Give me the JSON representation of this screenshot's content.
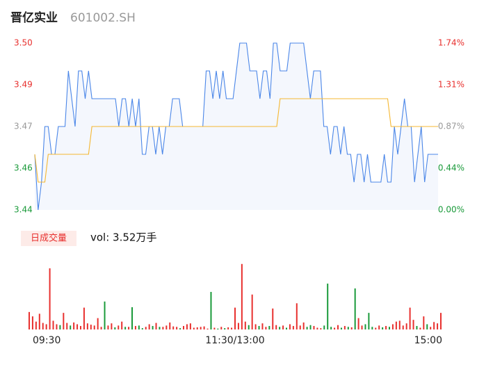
{
  "chart_data": {
    "type": "intraday",
    "title": "晋亿实业",
    "subtitle": "601002.SH",
    "xlim": [
      0,
      120
    ],
    "xticks": [
      {
        "value": 0,
        "label": "09:30"
      },
      {
        "value": 60,
        "label": "11:30/13:00"
      },
      {
        "value": 120,
        "label": "15:00"
      }
    ],
    "ylim": [
      3.44,
      3.5
    ],
    "yticks": [
      3.44,
      {
        "value": 3.455,
        "label": "3.46"
      },
      3.47,
      {
        "value": 3.485,
        "label": "3.49"
      },
      {
        "value": 3.5,
        "label": "3.50"
      }
    ],
    "y2lim": [
      0,
      1.744
    ],
    "y2ticks": [
      {
        "value": 0,
        "label": "0.00%"
      },
      {
        "value": 0.436,
        "label": "0.44%"
      },
      {
        "value": 0.872,
        "label": "0.87%"
      },
      {
        "value": 1.308,
        "label": "1.31%"
      },
      {
        "value": 1.744,
        "label": "1.74%"
      }
    ],
    "tick_colors": [
      "#1a9a3a",
      "#1a9a3a",
      "#999999",
      "#e8302e",
      "#e8302e"
    ],
    "series": [
      {
        "color": "#4a86e8",
        "values": [
          3.46,
          3.44,
          3.45,
          3.47,
          3.47,
          3.46,
          3.46,
          3.47,
          3.47,
          3.47,
          3.49,
          3.48,
          3.47,
          3.49,
          3.49,
          3.48,
          3.49,
          3.48,
          3.48,
          3.48,
          3.48,
          3.48,
          3.48,
          3.48,
          3.48,
          3.47,
          3.48,
          3.48,
          3.47,
          3.48,
          3.47,
          3.48,
          3.46,
          3.46,
          3.47,
          3.47,
          3.46,
          3.47,
          3.46,
          3.47,
          3.47,
          3.48,
          3.48,
          3.48,
          3.47,
          3.47,
          3.47,
          3.47,
          3.47,
          3.47,
          3.47,
          3.49,
          3.49,
          3.48,
          3.49,
          3.48,
          3.49,
          3.48,
          3.48,
          3.48,
          3.49,
          3.5,
          3.5,
          3.5,
          3.49,
          3.49,
          3.49,
          3.48,
          3.49,
          3.49,
          3.48,
          3.5,
          3.5,
          3.49,
          3.49,
          3.49,
          3.5,
          3.5,
          3.5,
          3.5,
          3.5,
          3.49,
          3.48,
          3.49,
          3.49,
          3.49,
          3.47,
          3.47,
          3.46,
          3.47,
          3.47,
          3.46,
          3.47,
          3.46,
          3.46,
          3.45,
          3.46,
          3.46,
          3.45,
          3.46,
          3.45,
          3.45,
          3.45,
          3.45,
          3.46,
          3.45,
          3.45,
          3.47,
          3.46,
          3.47,
          3.48,
          3.47,
          3.47,
          3.45,
          3.46,
          3.47,
          3.45,
          3.46,
          3.46,
          3.46,
          3.46
        ]
      },
      {
        "color": "#f5b731",
        "values": [
          3.46,
          3.45,
          3.45,
          3.45,
          3.46,
          3.46,
          3.46,
          3.46,
          3.46,
          3.46,
          3.46,
          3.46,
          3.46,
          3.46,
          3.46,
          3.46,
          3.46,
          3.47,
          3.47,
          3.47,
          3.47,
          3.47,
          3.47,
          3.47,
          3.47,
          3.47,
          3.47,
          3.47,
          3.47,
          3.47,
          3.47,
          3.47,
          3.47,
          3.47,
          3.47,
          3.47,
          3.47,
          3.47,
          3.47,
          3.47,
          3.47,
          3.47,
          3.47,
          3.47,
          3.47,
          3.47,
          3.47,
          3.47,
          3.47,
          3.47,
          3.47,
          3.47,
          3.47,
          3.47,
          3.47,
          3.47,
          3.47,
          3.47,
          3.47,
          3.47,
          3.47,
          3.47,
          3.47,
          3.47,
          3.47,
          3.47,
          3.47,
          3.47,
          3.47,
          3.47,
          3.47,
          3.47,
          3.47,
          3.48,
          3.48,
          3.48,
          3.48,
          3.48,
          3.48,
          3.48,
          3.48,
          3.48,
          3.48,
          3.48,
          3.48,
          3.48,
          3.48,
          3.48,
          3.48,
          3.48,
          3.48,
          3.48,
          3.48,
          3.48,
          3.48,
          3.48,
          3.48,
          3.48,
          3.48,
          3.48,
          3.48,
          3.48,
          3.48,
          3.48,
          3.48,
          3.48,
          3.47,
          3.47,
          3.47,
          3.47,
          3.47,
          3.47,
          3.47,
          3.47,
          3.47,
          3.47,
          3.47,
          3.47,
          3.47,
          3.47,
          3.47
        ]
      }
    ],
    "volume_label": "日成交量",
    "volume_text": "vol: 3.52万手",
    "volume_lim": [
      0,
      1560
    ],
    "volumes": [
      400,
      300,
      180,
      360,
      150,
      120,
      1400,
      200,
      120,
      100,
      380,
      150,
      90,
      160,
      120,
      80,
      500,
      140,
      110,
      90,
      260,
      60,
      640,
      90,
      140,
      50,
      90,
      180,
      60,
      60,
      510,
      80,
      90,
      30,
      60,
      120,
      80,
      150,
      60,
      60,
      90,
      160,
      70,
      60,
      30,
      80,
      120,
      140,
      40,
      50,
      60,
      70,
      20,
      860,
      40,
      20,
      60,
      30,
      50,
      40,
      500,
      150,
      1500,
      180,
      100,
      800,
      120,
      80,
      140,
      60,
      80,
      480,
      100,
      60,
      90,
      40,
      120,
      80,
      600,
      90,
      160,
      60,
      100,
      80,
      40,
      30,
      90,
      1050,
      60,
      40,
      100,
      40,
      80,
      60,
      50,
      940,
      260,
      90,
      120,
      380,
      60,
      40,
      90,
      50,
      80,
      60,
      120,
      180,
      200,
      90,
      140,
      500,
      220,
      80,
      40,
      300,
      120,
      60,
      170,
      140,
      380
    ],
    "volume_colors": [
      "#e8302e",
      "#e8302e",
      "#e8302e",
      "#e8302e",
      "#e8302e",
      "#e8302e",
      "#e8302e",
      "#e8302e",
      "#e8302e",
      "#1a9a3a",
      "#e8302e",
      "#e8302e",
      "#1a9a3a",
      "#e8302e",
      "#e8302e",
      "#e8302e",
      "#e8302e",
      "#e8302e",
      "#e8302e",
      "#e8302e",
      "#e8302e",
      "#e8302e",
      "#1a9a3a",
      "#e8302e",
      "#e8302e",
      "#1a9a3a",
      "#e8302e",
      "#e8302e",
      "#1a9a3a",
      "#e8302e",
      "#1a9a3a",
      "#e8302e",
      "#1a9a3a",
      "#1a9a3a",
      "#e8302e",
      "#e8302e",
      "#1a9a3a",
      "#e8302e",
      "#1a9a3a",
      "#e8302e",
      "#e8302e",
      "#e8302e",
      "#e8302e",
      "#e8302e",
      "#1a9a3a",
      "#e8302e",
      "#e8302e",
      "#e8302e",
      "#e8302e",
      "#e8302e",
      "#e8302e",
      "#e8302e",
      "#e8302e",
      "#1a9a3a",
      "#e8302e",
      "#1a9a3a",
      "#e8302e",
      "#1a9a3a",
      "#e8302e",
      "#e8302e",
      "#e8302e",
      "#e8302e",
      "#e8302e",
      "#e8302e",
      "#1a9a3a",
      "#e8302e",
      "#e8302e",
      "#1a9a3a",
      "#e8302e",
      "#e8302e",
      "#1a9a3a",
      "#e8302e",
      "#e8302e",
      "#1a9a3a",
      "#e8302e",
      "#1a9a3a",
      "#e8302e",
      "#e8302e",
      "#e8302e",
      "#e8302e",
      "#e8302e",
      "#1a9a3a",
      "#1a9a3a",
      "#e8302e",
      "#e8302e",
      "#e8302e",
      "#1a9a3a",
      "#1a9a3a",
      "#1a9a3a",
      "#e8302e",
      "#e8302e",
      "#1a9a3a",
      "#e8302e",
      "#1a9a3a",
      "#e8302e",
      "#1a9a3a",
      "#e8302e",
      "#e8302e",
      "#1a9a3a",
      "#1a9a3a",
      "#1a9a3a",
      "#e8302e",
      "#e8302e",
      "#1a9a3a",
      "#e8302e",
      "#1a9a3a",
      "#e8302e",
      "#e8302e",
      "#e8302e",
      "#e8302e",
      "#e8302e",
      "#e8302e",
      "#e8302e",
      "#1a9a3a",
      "#e8302e",
      "#e8302e",
      "#1a9a3a",
      "#e8302e",
      "#e8302e",
      "#e8302e",
      "#e8302e"
    ]
  }
}
